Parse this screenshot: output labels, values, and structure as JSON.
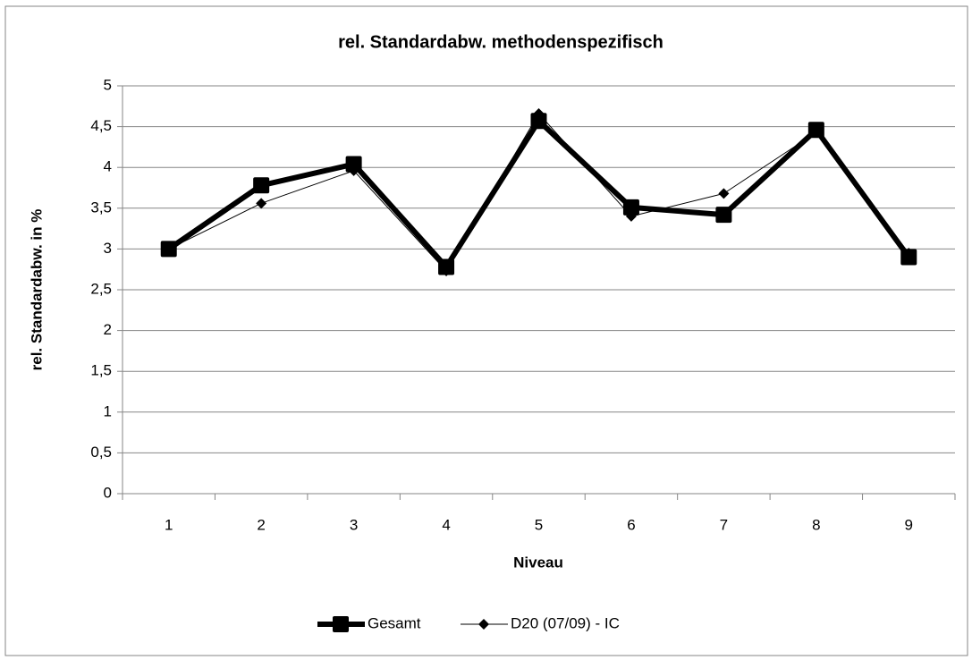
{
  "chart_data": {
    "type": "line",
    "title": "rel. Standardabw. methodenspezifisch",
    "x_label": "Niveau",
    "y_label": "rel. Standardabw. in %",
    "categories": [
      "1",
      "2",
      "3",
      "4",
      "5",
      "6",
      "7",
      "8",
      "9"
    ],
    "series": [
      {
        "name": "Gesamt",
        "color": "#000000",
        "marker": "square",
        "values": [
          3.0,
          3.78,
          4.04,
          2.78,
          4.57,
          3.51,
          3.42,
          4.46,
          2.9
        ]
      },
      {
        "name": "D20 (07/09) - IC",
        "color": "#000000",
        "marker": "diamond",
        "values": [
          3.0,
          3.56,
          3.96,
          2.73,
          4.66,
          3.4,
          3.68,
          4.43,
          2.95
        ]
      }
    ],
    "ylim": [
      0,
      5
    ],
    "yticks": [
      0,
      {
        "value": 0.5,
        "label": "0,5"
      },
      1,
      {
        "value": 1.5,
        "label": "1,5"
      },
      2,
      {
        "value": 2.5,
        "label": "2,5"
      },
      3,
      {
        "value": 3.5,
        "label": "3,5"
      },
      4,
      {
        "value": 4.5,
        "label": "4,5"
      },
      5
    ],
    "grid": true,
    "legend": "bottom"
  }
}
